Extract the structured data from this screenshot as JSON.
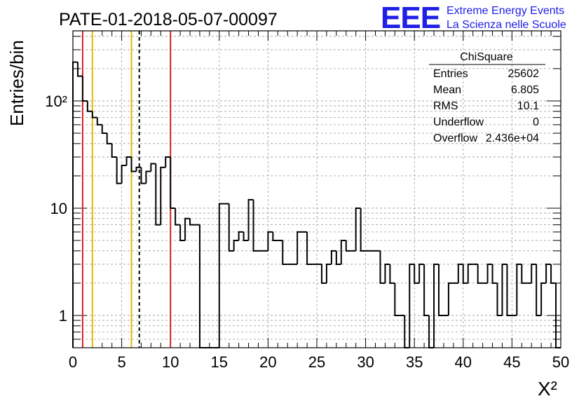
{
  "header": {
    "title": "PATE-01-2018-05-07-00097",
    "logo_text": "EEE",
    "brand_line1": "Extreme Energy Events",
    "brand_line2": "La Scienza nelle Scuole",
    "brand_color": "#1f1fe6"
  },
  "stats": {
    "title": "ChiSquare",
    "rows": [
      {
        "label": "Entries",
        "value": "25602"
      },
      {
        "label": "Mean",
        "value": "6.805"
      },
      {
        "label": "RMS",
        "value": "10.1"
      },
      {
        "label": "Underflow",
        "value": "0"
      },
      {
        "label": "Overflow",
        "value": "2.436e+04"
      }
    ]
  },
  "chart_data": {
    "type": "bar",
    "style": "step-histogram",
    "title": "PATE-01-2018-05-07-00097",
    "xlabel": "X²",
    "ylabel": "Entries/bin",
    "xlim": [
      0,
      50
    ],
    "ylim": [
      0.5,
      450
    ],
    "yscale": "log",
    "grid": true,
    "bin_width": 0.5,
    "x_ticks": [
      0,
      5,
      10,
      15,
      20,
      25,
      30,
      35,
      40,
      45,
      50
    ],
    "x_tick_labels": [
      "0",
      "5",
      "10",
      "15",
      "20",
      "25",
      "30",
      "35",
      "40",
      "45",
      "50"
    ],
    "y_ticks": [
      1,
      10,
      100
    ],
    "y_tick_labels": [
      "1",
      "10",
      "10²"
    ],
    "values": [
      230,
      170,
      100,
      80,
      70,
      60,
      50,
      40,
      30,
      17,
      25,
      30,
      22,
      24,
      17,
      22,
      26,
      7,
      24,
      30,
      10,
      7,
      5,
      8,
      7,
      7,
      0,
      0,
      0,
      0,
      11,
      11,
      4,
      5,
      6,
      5,
      12,
      4,
      4,
      4,
      6,
      5,
      5,
      3,
      3,
      3,
      6,
      6,
      3,
      3,
      3,
      2,
      3,
      4,
      3,
      5,
      4,
      4,
      10,
      4,
      4,
      4,
      4,
      2,
      3,
      2,
      1,
      1,
      0,
      3,
      2,
      3,
      1,
      0,
      3,
      1,
      1,
      2,
      2,
      3,
      2,
      3,
      3,
      2,
      2,
      3,
      2,
      1,
      3,
      1,
      1,
      3,
      2,
      2,
      3,
      1,
      2,
      3,
      2,
      0
    ],
    "series_color": "#000000",
    "reference_lines": [
      {
        "x": 1,
        "color": "#d62020",
        "style": "solid"
      },
      {
        "x": 2,
        "color": "#e8b800",
        "style": "solid"
      },
      {
        "x": 6,
        "color": "#e8b800",
        "style": "solid"
      },
      {
        "x": 6.805,
        "color": "#000000",
        "style": "dashed"
      },
      {
        "x": 10,
        "color": "#d62020",
        "style": "solid"
      }
    ]
  }
}
